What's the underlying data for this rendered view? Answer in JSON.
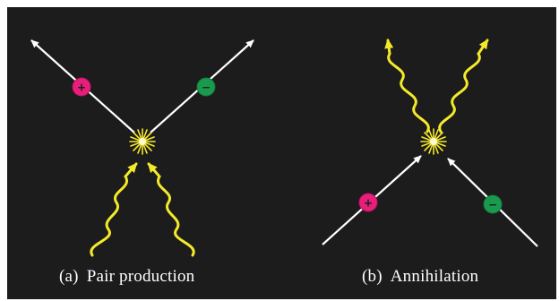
{
  "colors": {
    "background": "#1c1c1c",
    "page": "#ffffff",
    "particle_track": "#ffffff",
    "photon": "#f4ea2a",
    "positron": "#e6207a",
    "electron": "#1a9a4e",
    "burst": "#f4ea2a"
  },
  "icons": {
    "positron": "plus-circle-icon",
    "electron": "minus-circle-icon",
    "interaction": "starburst-icon",
    "photon": "wavy-arrow-icon"
  },
  "panels": {
    "pair_production": {
      "tag": "(a)",
      "caption": "Pair production",
      "positron_sign": "+",
      "electron_sign": "−"
    },
    "annihilation": {
      "tag": "(b)",
      "caption": "Annihilation",
      "positron_sign": "+",
      "electron_sign": "−"
    }
  }
}
